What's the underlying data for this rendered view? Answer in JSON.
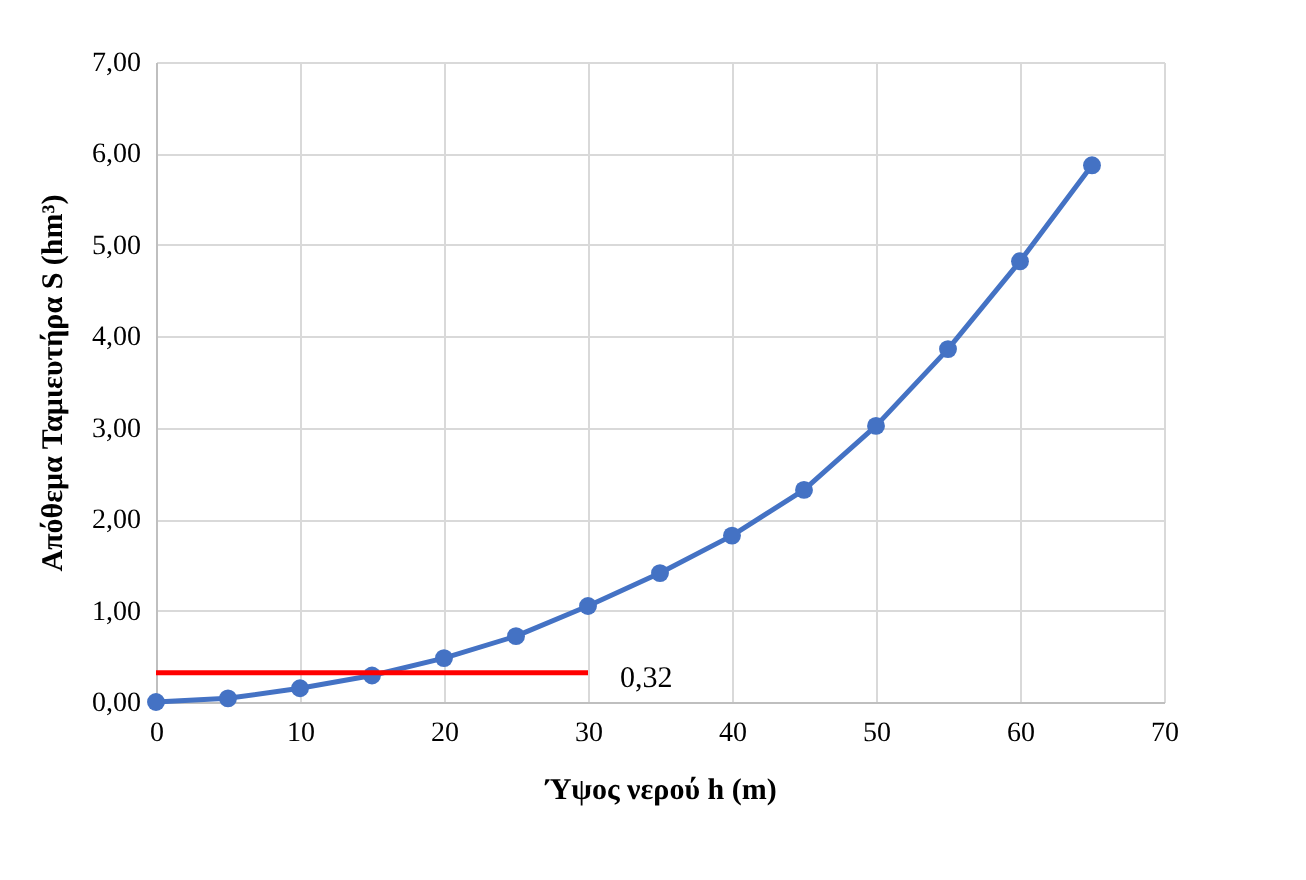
{
  "chart_data": {
    "type": "line",
    "xlabel": "Ύψος νερού h (m)",
    "ylabel": "Απόθεμα Ταμιευτήρα S (hm³)",
    "x": [
      0,
      5,
      10,
      15,
      20,
      25,
      30,
      35,
      40,
      45,
      50,
      55,
      60,
      65
    ],
    "series": [
      {
        "color": "#4472c4",
        "values": [
          0,
          0.04,
          0.15,
          0.29,
          0.48,
          0.72,
          1.05,
          1.41,
          1.82,
          2.32,
          3.02,
          3.86,
          4.82,
          5.87
        ]
      },
      {
        "color": "#ff0000",
        "x": [
          0,
          30
        ],
        "values": [
          0.32,
          0.32
        ],
        "marker": "none"
      }
    ],
    "annotations": [
      {
        "text": "0,32",
        "x": 30,
        "y": 0.32
      }
    ],
    "xlim": [
      0,
      70
    ],
    "xticks": [
      0,
      10,
      20,
      30,
      40,
      50,
      60,
      70
    ],
    "ylim": [
      0,
      7
    ],
    "yticks": [
      {
        "value": 0,
        "label": "0,00"
      },
      {
        "value": 1,
        "label": "1,00"
      },
      {
        "value": 2,
        "label": "2,00"
      },
      {
        "value": 3,
        "label": "3,00"
      },
      {
        "value": 4,
        "label": "4,00"
      },
      {
        "value": 5,
        "label": "5,00"
      },
      {
        "value": 6,
        "label": "6,00"
      },
      {
        "value": 7,
        "label": "7,00"
      }
    ],
    "grid": true,
    "marker": "circle",
    "line_style": "solid"
  }
}
